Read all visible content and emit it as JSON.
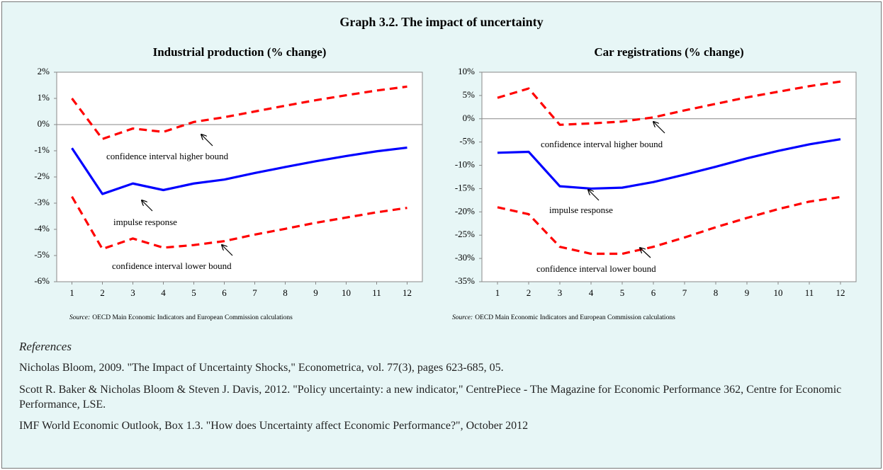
{
  "title": "Graph 3.2. The impact of uncertainty",
  "chart_data": [
    {
      "type": "line",
      "title": "Industrial production (% change)",
      "x": [
        1,
        2,
        3,
        4,
        5,
        6,
        7,
        8,
        9,
        10,
        11,
        12
      ],
      "xlim": [
        0.5,
        12.5
      ],
      "xticks": [
        1,
        2,
        3,
        4,
        5,
        6,
        7,
        8,
        9,
        10,
        11,
        12
      ],
      "ylim": [
        -6,
        2
      ],
      "yticks": [
        {
          "value": -6,
          "label": "-6%"
        },
        {
          "value": -5,
          "label": "-5%"
        },
        {
          "value": -4,
          "label": "-4%"
        },
        {
          "value": -3,
          "label": "-3%"
        },
        {
          "value": -2,
          "label": "-2%"
        },
        {
          "value": -1,
          "label": "-1%"
        },
        {
          "value": 0,
          "label": "0%"
        },
        {
          "value": 1,
          "label": "1%"
        },
        {
          "value": 2,
          "label": "2%"
        }
      ],
      "series": [
        {
          "name": "impulse response",
          "color": "#0000ff",
          "values": [
            -0.9,
            -2.65,
            -2.25,
            -2.5,
            -2.25,
            -2.1,
            -1.85,
            -1.62,
            -1.4,
            -1.2,
            -1.02,
            -0.88
          ]
        },
        {
          "name": "confidence interval higher bound",
          "color": "#ff0000",
          "values": [
            1.0,
            -0.55,
            -0.15,
            -0.28,
            0.1,
            0.28,
            0.5,
            0.72,
            0.93,
            1.12,
            1.3,
            1.45
          ]
        },
        {
          "name": "confidence interval lower bound",
          "color": "#ff0000",
          "values": [
            -2.75,
            -4.75,
            -4.35,
            -4.7,
            -4.6,
            -4.45,
            -4.2,
            -3.98,
            -3.75,
            -3.55,
            -3.35,
            -3.18
          ]
        }
      ],
      "source_label": "Source:",
      "source": "OECD Main Economic Indicators and European Commission calculations"
    },
    {
      "type": "line",
      "title": "Car registrations (% change)",
      "x": [
        1,
        2,
        3,
        4,
        5,
        6,
        7,
        8,
        9,
        10,
        11,
        12
      ],
      "xlim": [
        0.5,
        12.5
      ],
      "xticks": [
        1,
        2,
        3,
        4,
        5,
        6,
        7,
        8,
        9,
        10,
        11,
        12
      ],
      "ylim": [
        -35,
        10
      ],
      "yticks": [
        {
          "value": -35,
          "label": "-35%"
        },
        {
          "value": -30,
          "label": "-30%"
        },
        {
          "value": -25,
          "label": "-25%"
        },
        {
          "value": -20,
          "label": "-20%"
        },
        {
          "value": -15,
          "label": "-15%"
        },
        {
          "value": -10,
          "label": "-10%"
        },
        {
          "value": -5,
          "label": "-5%"
        },
        {
          "value": 0,
          "label": "0%"
        },
        {
          "value": 5,
          "label": "5%"
        },
        {
          "value": 10,
          "label": "10%"
        }
      ],
      "series": [
        {
          "name": "impulse response",
          "color": "#0000ff",
          "values": [
            -7.3,
            -7.1,
            -14.5,
            -15,
            -14.8,
            -13.6,
            -12,
            -10.3,
            -8.5,
            -6.9,
            -5.5,
            -4.4
          ]
        },
        {
          "name": "confidence interval higher bound",
          "color": "#ff0000",
          "values": [
            4.5,
            6.5,
            -1.3,
            -1.0,
            -0.6,
            0.3,
            1.8,
            3.2,
            4.6,
            5.8,
            7.0,
            8.0
          ]
        },
        {
          "name": "confidence interval lower bound",
          "color": "#ff0000",
          "values": [
            -19,
            -20.5,
            -27.5,
            -29,
            -29,
            -27.5,
            -25.5,
            -23.3,
            -21.3,
            -19.4,
            -17.8,
            -16.8
          ]
        }
      ],
      "source_label": "Source:",
      "source": "OECD Main Economic Indicators and European Commission calculations"
    }
  ],
  "references": {
    "heading": "References",
    "items": [
      "Nicholas Bloom, 2009. \"The Impact of Uncertainty Shocks,\" Econometrica, vol. 77(3), pages 623-685, 05.",
      "Scott R. Baker & Nicholas Bloom & Steven J. Davis, 2012. \"Policy uncertainty: a new indicator,\" CentrePiece - The Magazine for Economic Performance 362, Centre for Economic Performance, LSE.",
      "IMF World Economic Outlook, Box 1.3. \"How does Uncertainty affect Economic Performance?\", October 2012"
    ]
  }
}
